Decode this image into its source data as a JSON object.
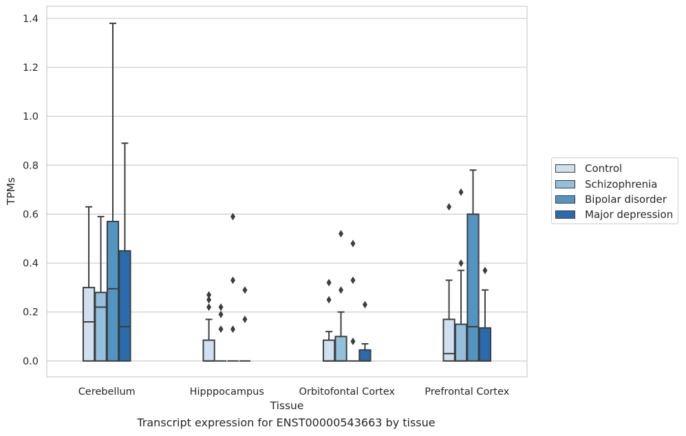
{
  "chart_data": {
    "type": "box",
    "title": "",
    "caption": "Transcript expression for ENST00000543663 by tissue",
    "xlabel": "Tissue",
    "ylabel": "TPMs",
    "ylim": [
      -0.065,
      1.45
    ],
    "yticks": [
      "0.0",
      "0.2",
      "0.4",
      "0.6",
      "0.8",
      "1.0",
      "1.2",
      "1.4"
    ],
    "grid": true,
    "legend_position": "right",
    "categories": [
      "Cerebellum",
      "Hipppocampus",
      "Orbitofontal Cortex",
      "Prefrontal Cortex"
    ],
    "series": [
      {
        "name": "Control",
        "color": "#d0e0f0",
        "boxes": [
          {
            "whisker_low": 0.0,
            "q1": 0.0,
            "median": 0.16,
            "q3": 0.3,
            "whisker_high": 0.63,
            "outliers": []
          },
          {
            "whisker_low": 0.0,
            "q1": 0.0,
            "median": 0.0,
            "q3": 0.085,
            "whisker_high": 0.17,
            "outliers": [
              0.22,
              0.25,
              0.27
            ]
          },
          {
            "whisker_low": 0.0,
            "q1": 0.0,
            "median": 0.0,
            "q3": 0.085,
            "whisker_high": 0.12,
            "outliers": [
              0.25,
              0.32
            ]
          },
          {
            "whisker_low": 0.0,
            "q1": 0.0,
            "median": 0.03,
            "q3": 0.17,
            "whisker_high": 0.33,
            "outliers": [
              0.63
            ]
          }
        ]
      },
      {
        "name": "Schizophrenia",
        "color": "#94c0dd",
        "boxes": [
          {
            "whisker_low": 0.0,
            "q1": 0.0,
            "median": 0.22,
            "q3": 0.28,
            "whisker_high": 0.59,
            "outliers": []
          },
          {
            "whisker_low": 0.0,
            "q1": 0.0,
            "median": 0.0,
            "q3": 0.0,
            "whisker_high": 0.0,
            "outliers": [
              0.13,
              0.19,
              0.22
            ]
          },
          {
            "whisker_low": 0.0,
            "q1": 0.0,
            "median": 0.0,
            "q3": 0.1,
            "whisker_high": 0.2,
            "outliers": [
              0.29,
              0.52
            ]
          },
          {
            "whisker_low": 0.0,
            "q1": 0.0,
            "median": 0.0,
            "q3": 0.15,
            "whisker_high": 0.37,
            "outliers": [
              0.4,
              0.69
            ]
          }
        ]
      },
      {
        "name": "Bipolar disorder",
        "color": "#5295c3",
        "boxes": [
          {
            "whisker_low": 0.0,
            "q1": 0.0,
            "median": 0.295,
            "q3": 0.57,
            "whisker_high": 1.38,
            "outliers": []
          },
          {
            "whisker_low": 0.0,
            "q1": 0.0,
            "median": 0.0,
            "q3": 0.0,
            "whisker_high": 0.0,
            "outliers": [
              0.13,
              0.33,
              0.59
            ]
          },
          {
            "whisker_low": 0.0,
            "q1": 0.0,
            "median": 0.0,
            "q3": 0.0,
            "whisker_high": 0.0,
            "outliers": [
              0.08,
              0.33,
              0.48
            ]
          },
          {
            "whisker_low": 0.0,
            "q1": 0.0,
            "median": 0.14,
            "q3": 0.6,
            "whisker_high": 0.78,
            "outliers": []
          }
        ]
      },
      {
        "name": "Major depression",
        "color": "#2a6bae",
        "boxes": [
          {
            "whisker_low": 0.0,
            "q1": 0.0,
            "median": 0.14,
            "q3": 0.45,
            "whisker_high": 0.89,
            "outliers": []
          },
          {
            "whisker_low": 0.0,
            "q1": 0.0,
            "median": 0.0,
            "q3": 0.0,
            "whisker_high": 0.0,
            "outliers": [
              0.17,
              0.29
            ]
          },
          {
            "whisker_low": 0.0,
            "q1": 0.0,
            "median": 0.0,
            "q3": 0.045,
            "whisker_high": 0.07,
            "outliers": [
              0.23
            ]
          },
          {
            "whisker_low": 0.0,
            "q1": 0.0,
            "median": 0.0,
            "q3": 0.135,
            "whisker_high": 0.29,
            "outliers": [
              0.37
            ]
          }
        ]
      }
    ]
  }
}
